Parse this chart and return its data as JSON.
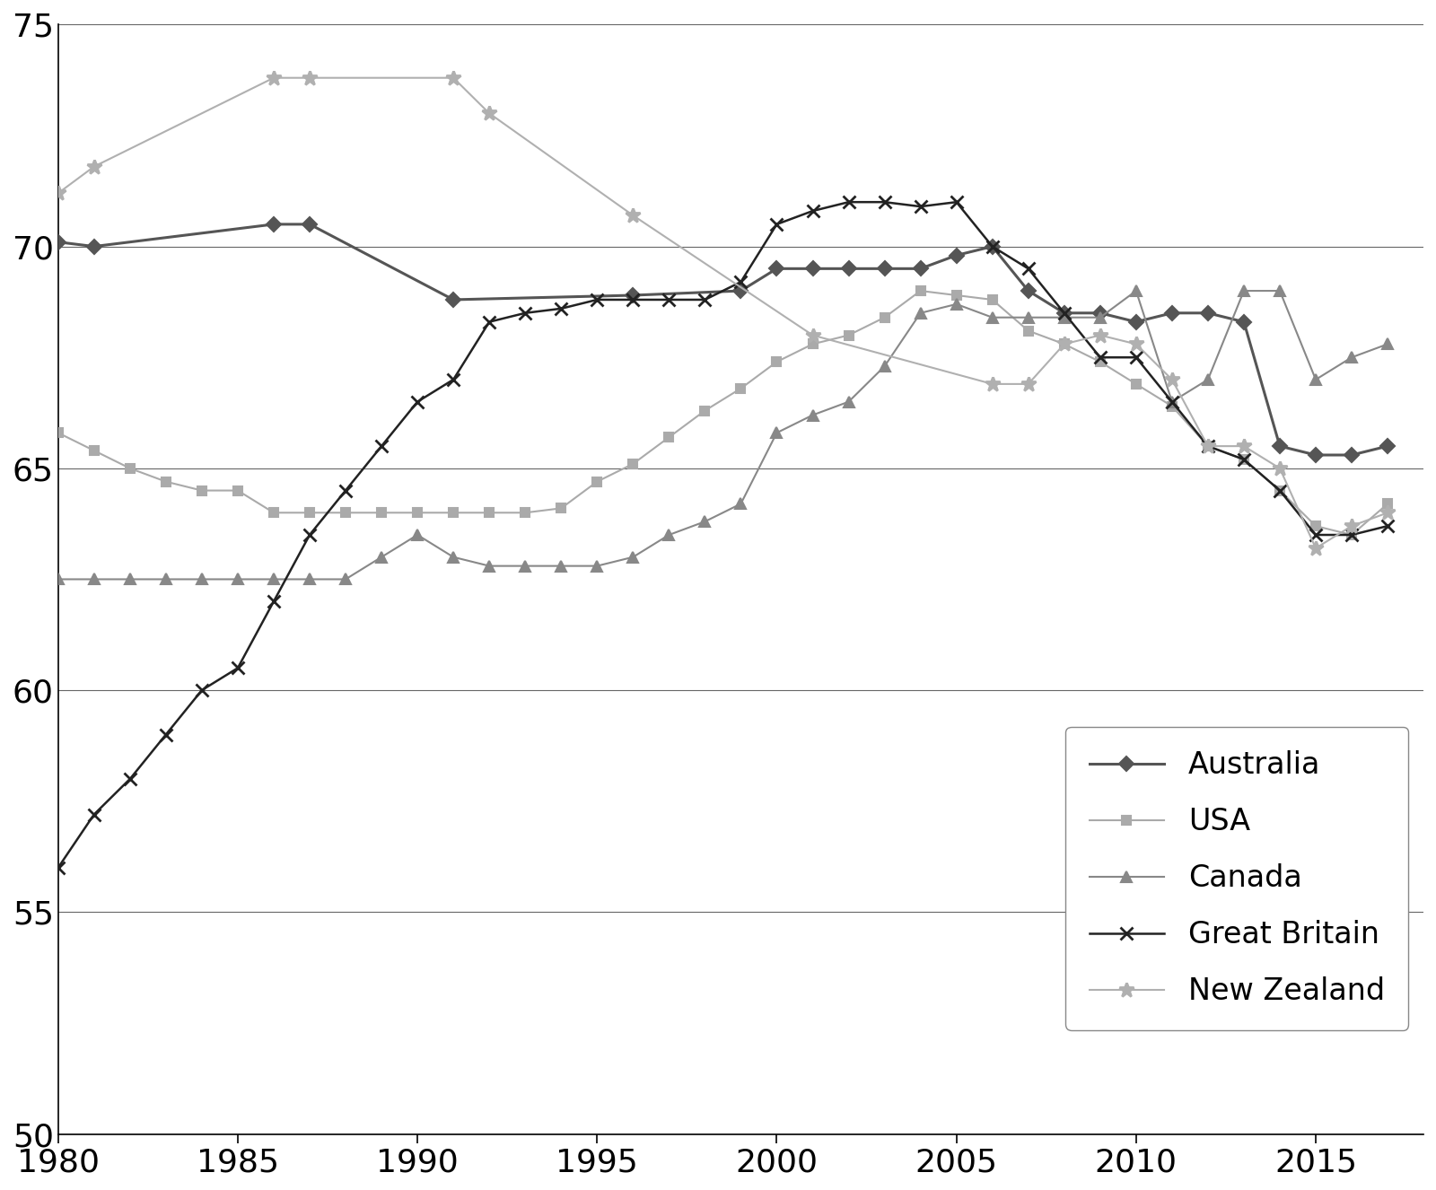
{
  "australia": {
    "x": [
      1980,
      1981,
      1986,
      1987,
      1991,
      1996,
      1999,
      2000,
      2001,
      2002,
      2003,
      2004,
      2005,
      2006,
      2007,
      2008,
      2009,
      2010,
      2011,
      2012,
      2013,
      2014,
      2015,
      2016,
      2017
    ],
    "y": [
      70.1,
      70.0,
      70.5,
      70.5,
      68.8,
      68.9,
      69.0,
      69.5,
      69.5,
      69.5,
      69.5,
      69.5,
      69.8,
      70.0,
      69.0,
      68.5,
      68.5,
      68.3,
      68.5,
      68.5,
      68.3,
      65.5,
      65.3,
      65.3,
      65.5
    ],
    "color": "#555555",
    "marker": "D",
    "linewidth": 2.2,
    "markersize": 8,
    "label": "Australia"
  },
  "usa": {
    "x": [
      1980,
      1981,
      1982,
      1983,
      1984,
      1985,
      1986,
      1987,
      1988,
      1989,
      1990,
      1991,
      1992,
      1993,
      1994,
      1995,
      1996,
      1997,
      1998,
      1999,
      2000,
      2001,
      2002,
      2003,
      2004,
      2005,
      2006,
      2007,
      2008,
      2009,
      2010,
      2011,
      2012,
      2013,
      2014,
      2015,
      2016,
      2017
    ],
    "y": [
      65.8,
      65.4,
      65.0,
      64.7,
      64.5,
      64.5,
      64.0,
      64.0,
      64.0,
      64.0,
      64.0,
      64.0,
      64.0,
      64.0,
      64.1,
      64.7,
      65.1,
      65.7,
      66.3,
      66.8,
      67.4,
      67.8,
      68.0,
      68.4,
      69.0,
      68.9,
      68.8,
      68.1,
      67.8,
      67.4,
      66.9,
      66.4,
      65.5,
      65.2,
      64.5,
      63.7,
      63.5,
      64.2
    ],
    "color": "#aaaaaa",
    "marker": "s",
    "linewidth": 1.5,
    "markersize": 7,
    "label": "USA"
  },
  "canada": {
    "x": [
      1980,
      1981,
      1982,
      1983,
      1984,
      1985,
      1986,
      1987,
      1988,
      1989,
      1990,
      1991,
      1992,
      1993,
      1994,
      1995,
      1996,
      1997,
      1998,
      1999,
      2000,
      2001,
      2002,
      2003,
      2004,
      2005,
      2006,
      2007,
      2008,
      2009,
      2010,
      2011,
      2012,
      2013,
      2014,
      2015,
      2016,
      2017
    ],
    "y": [
      62.5,
      62.5,
      62.5,
      62.5,
      62.5,
      62.5,
      62.5,
      62.5,
      62.5,
      63.0,
      63.5,
      63.0,
      62.8,
      62.8,
      62.8,
      62.8,
      63.0,
      63.5,
      63.8,
      64.2,
      65.8,
      66.2,
      66.5,
      67.3,
      68.5,
      68.7,
      68.4,
      68.4,
      68.4,
      68.4,
      69.0,
      66.5,
      67.0,
      69.0,
      69.0,
      67.0,
      67.5,
      67.8
    ],
    "color": "#888888",
    "marker": "^",
    "linewidth": 1.5,
    "markersize": 8,
    "label": "Canada"
  },
  "great_britain": {
    "x": [
      1980,
      1981,
      1982,
      1983,
      1984,
      1985,
      1986,
      1987,
      1988,
      1989,
      1990,
      1991,
      1992,
      1993,
      1994,
      1995,
      1996,
      1997,
      1998,
      1999,
      2000,
      2001,
      2002,
      2003,
      2004,
      2005,
      2006,
      2007,
      2008,
      2009,
      2010,
      2011,
      2012,
      2013,
      2014,
      2015,
      2016,
      2017
    ],
    "y": [
      56.0,
      57.2,
      58.0,
      59.0,
      60.0,
      60.5,
      62.0,
      63.5,
      64.5,
      65.5,
      66.5,
      67.0,
      68.3,
      68.5,
      68.6,
      68.8,
      68.8,
      68.8,
      68.8,
      69.2,
      70.5,
      70.8,
      71.0,
      71.0,
      70.9,
      71.0,
      70.0,
      69.5,
      68.5,
      67.5,
      67.5,
      66.5,
      65.5,
      65.2,
      64.5,
      63.5,
      63.5,
      63.7
    ],
    "color": "#222222",
    "marker": "x",
    "linewidth": 1.8,
    "markersize": 10,
    "label": "Great Britain"
  },
  "new_zealand": {
    "x": [
      1980,
      1981,
      1986,
      1987,
      1991,
      1992,
      1996,
      2001,
      2006,
      2007,
      2008,
      2009,
      2010,
      2011,
      2012,
      2013,
      2014,
      2015,
      2016,
      2017
    ],
    "y": [
      71.2,
      71.8,
      73.8,
      73.8,
      73.8,
      73.0,
      70.7,
      68.0,
      66.9,
      66.9,
      67.8,
      68.0,
      67.8,
      67.0,
      65.5,
      65.5,
      65.0,
      63.2,
      63.7,
      64.0
    ],
    "color": "#b0b0b0",
    "marker": "*",
    "linewidth": 1.5,
    "markersize": 12,
    "label": "New Zealand"
  },
  "ylim": [
    50,
    75
  ],
  "xlim": [
    1980,
    2018
  ],
  "yticks": [
    50,
    55,
    60,
    65,
    70,
    75
  ],
  "xticks": [
    1980,
    1985,
    1990,
    1995,
    2000,
    2005,
    2010,
    2015
  ],
  "background_color": "#ffffff",
  "grid_color": "#666666"
}
